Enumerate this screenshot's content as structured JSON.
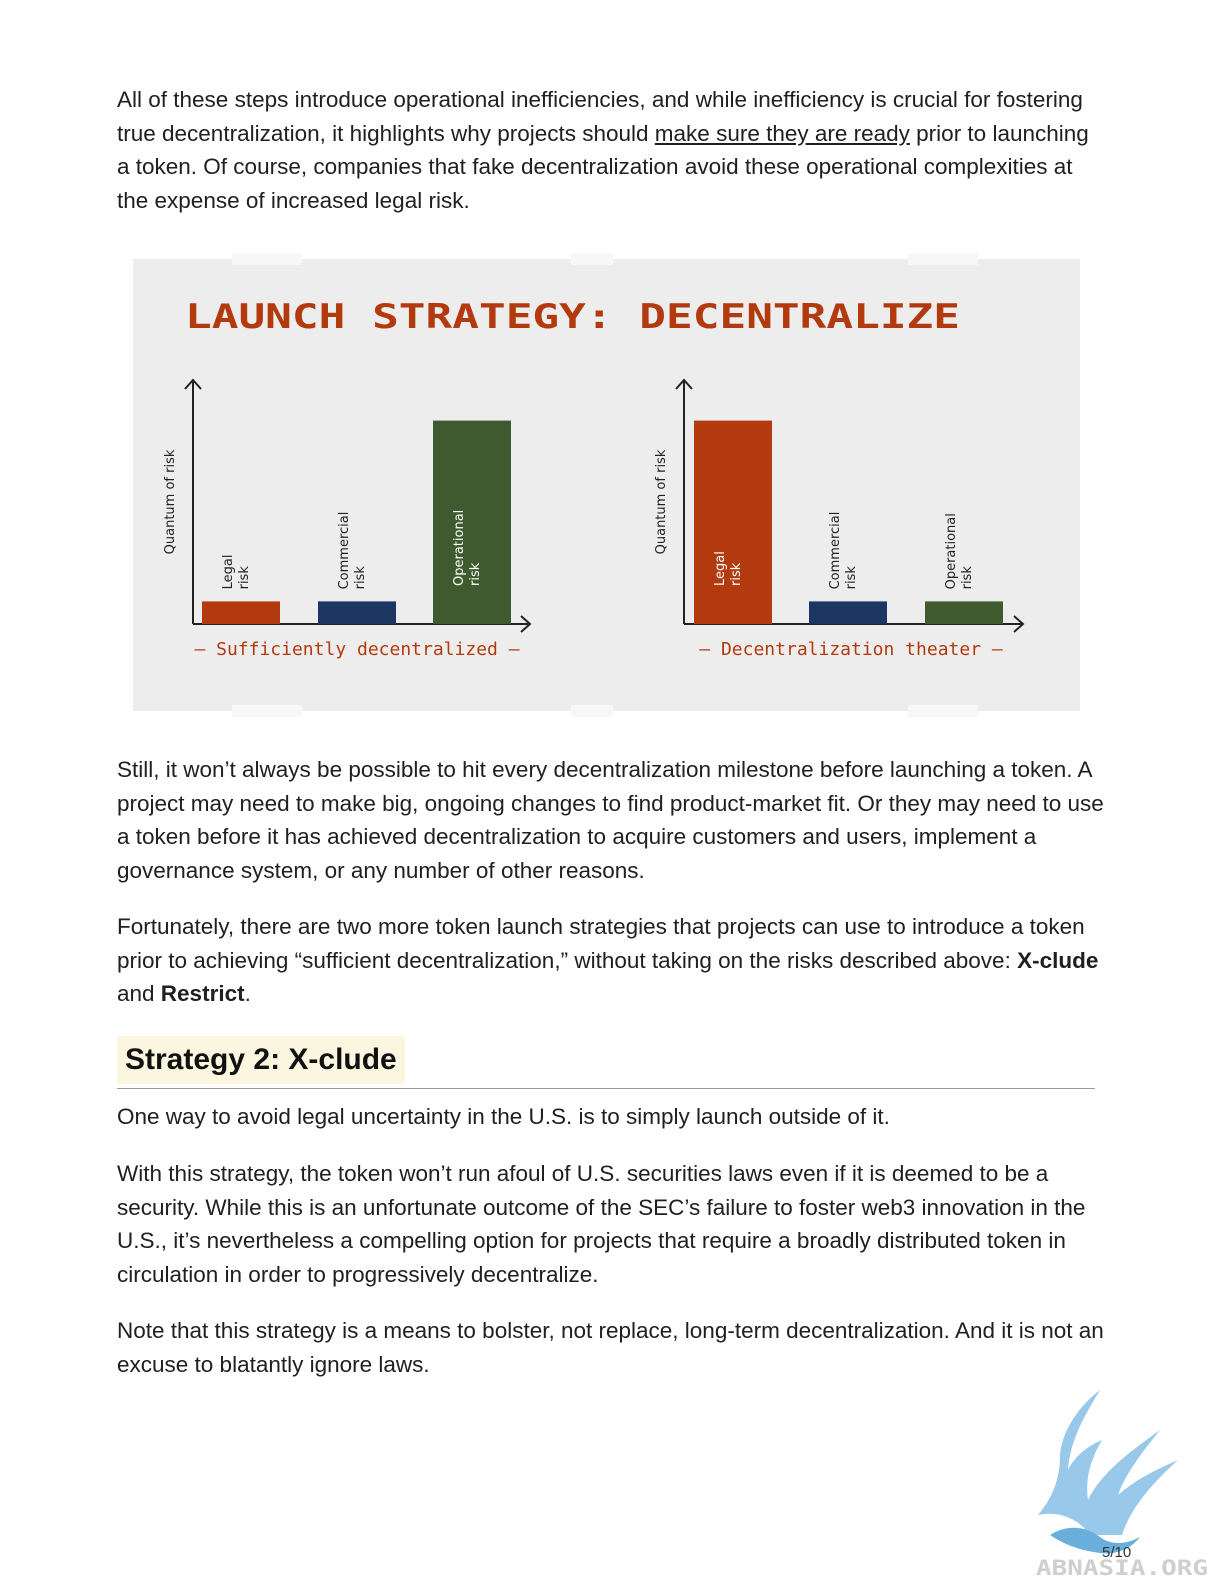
{
  "paragraphs": {
    "p1_before": "All of these steps introduce operational inefficiencies, and while inefficiency is crucial for fostering true decentralization, it highlights why projects should ",
    "p1_link": "make sure they are ready",
    "p1_after": " prior to launching a token. Of course, companies that fake decentralization avoid these operational complexities at the expense of increased legal risk.",
    "p2": "Still, it won’t always be possible to hit every decentralization milestone before launching a token. A project may need to make big, ongoing changes to find product-market fit. Or they may need to use a token before it has achieved decentralization to acquire customers and users, implement a governance system, or any number of other reasons.",
    "p3_before": "Fortunately, there are two more token launch strategies that projects can use to introduce a token prior to achieving “sufficient decentralization,” without taking on the risks described above: ",
    "p3_bold1": "X-clude",
    "p3_mid": " and ",
    "p3_bold2": "Restrict",
    "p3_end": ".",
    "p4": "One way to avoid legal uncertainty in the U.S. is to simply launch outside of it.",
    "p5": "With this strategy, the token won’t run afoul of U.S. securities laws even if it is deemed to be a security. While this is an unfortunate outcome of the SEC’s failure to foster web3 innovation in the U.S., it’s nevertheless a compelling option for projects that require a broadly distributed token in circulation in order to progressively decentralize.",
    "p6": "Note that this strategy is a means to bolster, not replace, long-term decentralization. And it is not an excuse to blatantly ignore laws."
  },
  "heading": "Strategy 2: X-clude",
  "page_number": "5/10",
  "logo_text": "ABNASIA.ORG",
  "chart_data": [
    {
      "type": "bar",
      "title": "LAUNCH STRATEGY: DECENTRALIZE",
      "xlabel": "— Sufficiently decentralized —",
      "ylabel": "Quantum of risk",
      "categories": [
        "Legal risk",
        "Commercial risk",
        "Operational risk"
      ],
      "category_lines": [
        [
          "Legal",
          "risk"
        ],
        [
          "Commercial",
          "risk"
        ],
        [
          "Operational",
          "risk"
        ]
      ],
      "values": [
        1,
        1,
        9
      ],
      "colors": [
        "#b33a0f",
        "#1c3661",
        "#3e5a2e"
      ],
      "ylim": [
        0,
        10
      ]
    },
    {
      "type": "bar",
      "xlabel": "— Decentralization theater —",
      "ylabel": "Quantum of risk",
      "categories": [
        "Legal risk",
        "Commercial risk",
        "Operational risk"
      ],
      "category_lines": [
        [
          "Legal",
          "risk"
        ],
        [
          "Commercial",
          "risk"
        ],
        [
          "Operational",
          "risk"
        ]
      ],
      "values": [
        9,
        1,
        1
      ],
      "colors": [
        "#b33a0f",
        "#1c3661",
        "#3e5a2e"
      ],
      "ylim": [
        0,
        10
      ]
    }
  ],
  "colors": {
    "chart_background": "#ededed",
    "title_color": "#b33a0f",
    "axis_color": "#222222",
    "heading_highlight": "#fbf6e0"
  }
}
